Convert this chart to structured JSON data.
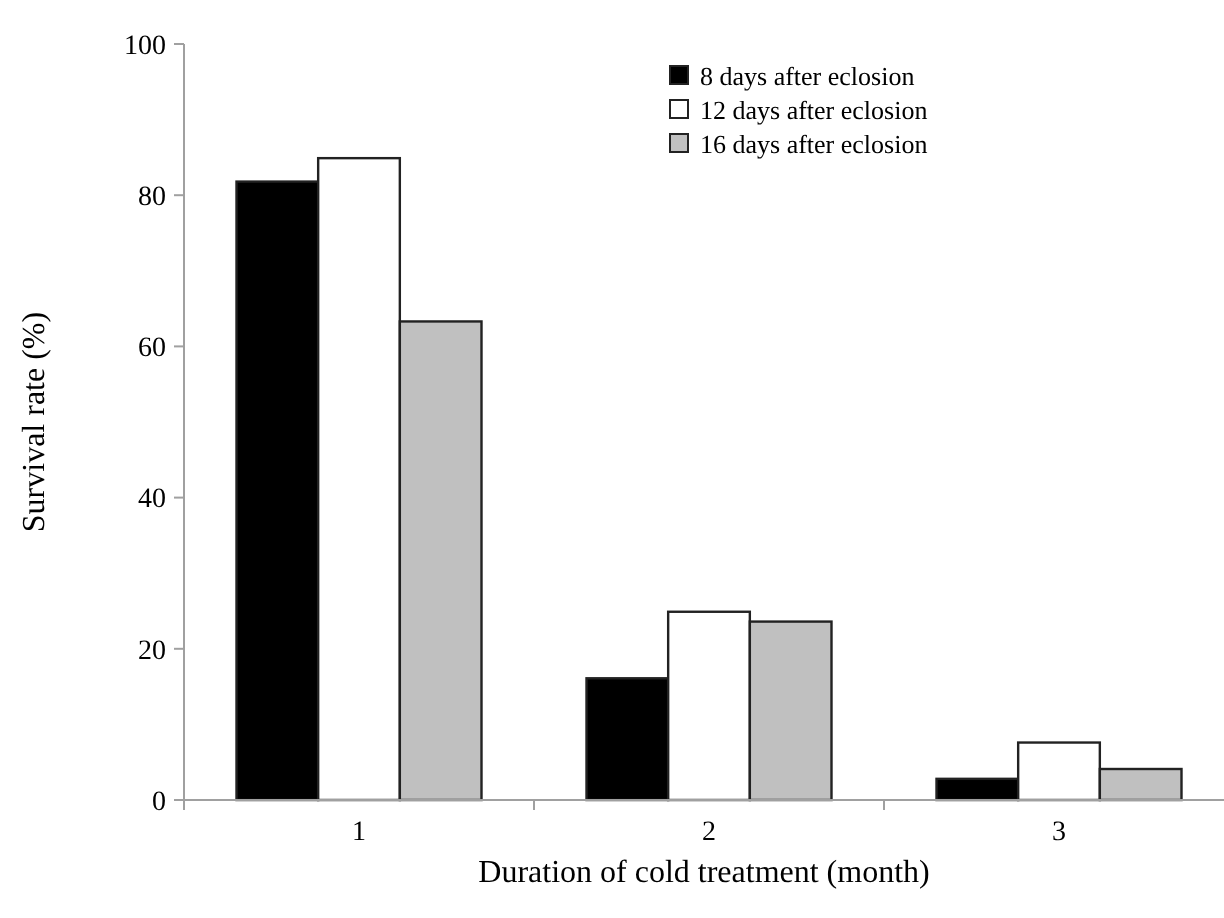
{
  "chart_data": {
    "type": "bar",
    "xlabel": "Duration of cold treatment (month)",
    "ylabel": "Survival rate (%)",
    "categories": [
      "1",
      "2",
      "3"
    ],
    "series": [
      {
        "name": "8 days after eclosion",
        "color": "#000000",
        "values": [
          81.8,
          16.1,
          2.8
        ]
      },
      {
        "name": "12 days after eclosion",
        "color": "#ffffff",
        "values": [
          84.9,
          24.9,
          7.6
        ]
      },
      {
        "name": "16 days after eclosion",
        "color": "#c0c0c0",
        "values": [
          63.3,
          23.6,
          4.1
        ]
      }
    ],
    "ylim": [
      0,
      100
    ],
    "yticks": [
      0,
      20,
      40,
      60,
      80,
      100
    ],
    "grid": false,
    "legend": "top right"
  }
}
